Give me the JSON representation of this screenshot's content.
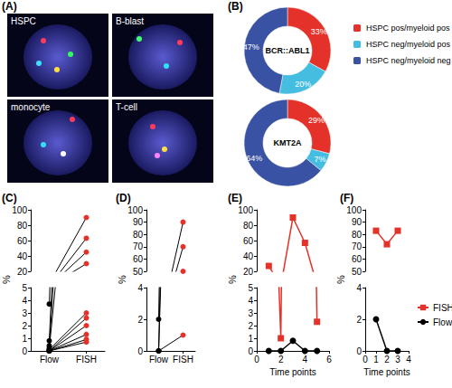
{
  "chart_data": [
    {
      "type": "image",
      "title": "(A)",
      "annotations": [
        "HSPC",
        "B-blast",
        "monocyte",
        "T-cell"
      ]
    },
    {
      "type": "pie",
      "title": "(B)",
      "categories": [
        "HSPC pos/myeloid pos",
        "HSPC neg/myeloid pos",
        "HSPC neg/myeloid neg"
      ],
      "colors": [
        "#e4322b",
        "#45bde0",
        "#3a52a3"
      ],
      "series": [
        {
          "name": "BCR::ABL1",
          "values": [
            33,
            20,
            47
          ],
          "value_labels": [
            "33%",
            "20%",
            "47%"
          ]
        },
        {
          "name": "KMT2A",
          "values": [
            29,
            7,
            64
          ],
          "value_labels": [
            "29%",
            "7%",
            "64%"
          ]
        }
      ],
      "data_labels": true,
      "legend": "right"
    },
    {
      "type": "line",
      "title": "(C)",
      "categories": [
        "Flow",
        "FISH"
      ],
      "values": [
        [
          3.7,
          90
        ],
        [
          0.8,
          63
        ],
        [
          0.4,
          45
        ],
        [
          0.2,
          30
        ],
        [
          0.1,
          3.0
        ],
        [
          0,
          2.6
        ],
        [
          0,
          2.0
        ],
        [
          0,
          1.3
        ],
        [
          0,
          0.9
        ],
        [
          0,
          0.7
        ]
      ],
      "colors": [
        "#000000",
        "#e4322b"
      ],
      "marker": "circle",
      "ylabel": "%",
      "ylim": [
        [
          0,
          5
        ],
        [
          20,
          100
        ]
      ],
      "yticks": [
        [
          0,
          1,
          2,
          3,
          4,
          5
        ],
        [
          20,
          40,
          60,
          80,
          100
        ]
      ],
      "grid": false
    },
    {
      "type": "line",
      "title": "(D)",
      "categories": [
        "Flow",
        "FISH"
      ],
      "values": [
        [
          2,
          90
        ],
        [
          0,
          70
        ],
        [
          0,
          50
        ],
        [
          0,
          1
        ]
      ],
      "colors": [
        "#000000",
        "#e4322b"
      ],
      "marker": "circle",
      "ylabel": "%",
      "ylim": [
        [
          0,
          4
        ],
        [
          50,
          100
        ]
      ],
      "yticks": [
        [
          0,
          2,
          4
        ],
        [
          50,
          60,
          70,
          80,
          90,
          100
        ]
      ],
      "grid": false
    },
    {
      "type": "line",
      "title": "(E)",
      "x": [
        1,
        2,
        3,
        4,
        5
      ],
      "xlabel": "Time points",
      "ylabel": "%",
      "series": [
        {
          "name": "FISH",
          "color": "#e4322b",
          "marker": "square",
          "values": [
            27,
            1,
            90,
            57,
            2.3
          ]
        },
        {
          "name": "Flow",
          "color": "#000000",
          "marker": "circle",
          "values": [
            0,
            0,
            0.8,
            0,
            0
          ]
        }
      ],
      "xlim": [
        0,
        6
      ],
      "xticks": [
        0,
        2,
        4,
        6
      ],
      "ylim": [
        [
          0,
          5
        ],
        [
          20,
          100
        ]
      ],
      "yticks": [
        [
          0,
          1,
          2,
          3,
          4,
          5
        ],
        [
          20,
          40,
          60,
          80,
          100
        ]
      ],
      "grid": false
    },
    {
      "type": "line",
      "title": "(F)",
      "x": [
        1,
        2,
        3
      ],
      "xlabel": "Time points",
      "ylabel": "%",
      "series": [
        {
          "name": "FISH",
          "color": "#e4322b",
          "marker": "square",
          "values": [
            83,
            72,
            83
          ]
        },
        {
          "name": "Flow",
          "color": "#000000",
          "marker": "circle",
          "values": [
            2,
            0,
            0
          ]
        }
      ],
      "xlim": [
        0,
        4
      ],
      "xticks": [
        0,
        1,
        2,
        3,
        4
      ],
      "ylim": [
        [
          0,
          4
        ],
        [
          50,
          100
        ]
      ],
      "yticks": [
        [
          0,
          2,
          4
        ],
        [
          50,
          60,
          70,
          80,
          90,
          100
        ]
      ],
      "grid": false,
      "legend": "right"
    }
  ]
}
